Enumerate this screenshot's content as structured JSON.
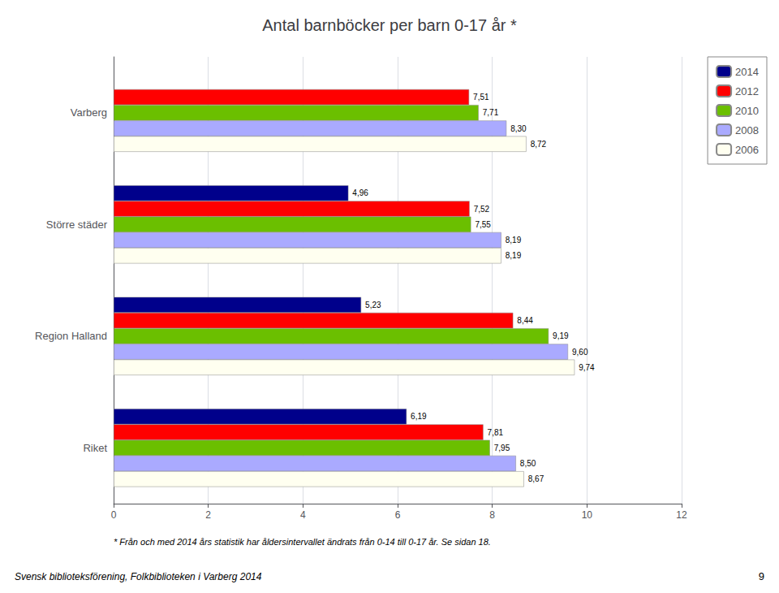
{
  "chart_data": {
    "type": "bar",
    "orientation": "horizontal",
    "title": "Antal barnböcker per barn 0-17 år *",
    "categories": [
      "Varberg",
      "Större städer",
      "Region Halland",
      "Riket"
    ],
    "series": [
      {
        "name": "2014",
        "color": "#00008B",
        "values": [
          null,
          4.96,
          5.23,
          6.19
        ],
        "value_labels": [
          null,
          "4,96",
          "5,23",
          "6,19"
        ]
      },
      {
        "name": "2012",
        "color": "#FF0000",
        "values": [
          7.51,
          7.52,
          8.44,
          7.81
        ],
        "value_labels": [
          "7,51",
          "7,52",
          "8,44",
          "7,81"
        ]
      },
      {
        "name": "2010",
        "color": "#6BBF00",
        "values": [
          7.71,
          7.55,
          9.19,
          7.95
        ],
        "value_labels": [
          "7,71",
          "7,55",
          "9,19",
          "7,95"
        ]
      },
      {
        "name": "2008",
        "color": "#AAAAFF",
        "values": [
          8.3,
          8.19,
          9.6,
          8.5
        ],
        "value_labels": [
          "8,30",
          "8,19",
          "9,60",
          "8,50"
        ]
      },
      {
        "name": "2006",
        "color": "#FFFFF0",
        "values": [
          8.72,
          8.19,
          9.74,
          8.67
        ],
        "value_labels": [
          "8,72",
          "8,19",
          "9,74",
          "8,67"
        ]
      }
    ],
    "xlim": [
      0,
      12
    ],
    "xticks": [
      0,
      2,
      4,
      6,
      8,
      10,
      12
    ],
    "grid": true,
    "legend": "right",
    "data_labels": true,
    "annotations": [
      "* Från och med 2014 års statistik har åldersintervallet ändrats från 0-14 till 0-17 år. Se sidan 18.",
      "Svensk biblioteksförening, Folkbiblioteken i Varberg 2014",
      "9"
    ]
  }
}
